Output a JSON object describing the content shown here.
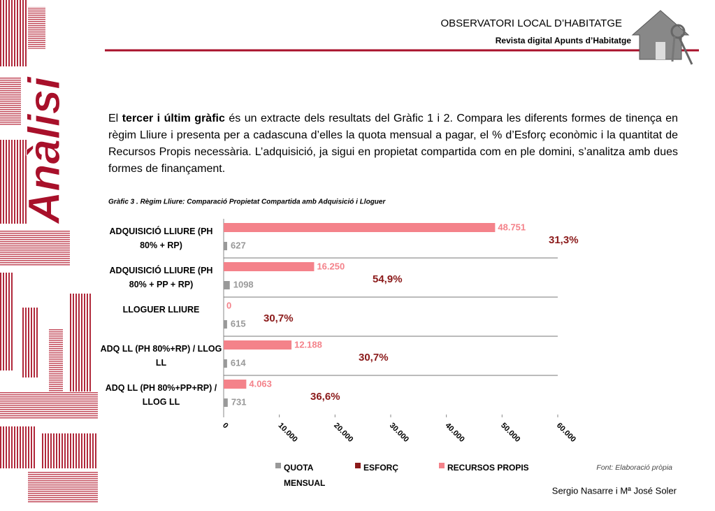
{
  "header": {
    "title": "OBSERVATORI LOCAL D’HABITATGE",
    "subtitle": "Revista digital Apunts d’Habitatge"
  },
  "side_label": "Anàlisi",
  "paragraph": {
    "before": "El ",
    "bold": "tercer i últim gràfic",
    "after": " és un extracte dels resultats del Gràfic 1 i 2. Compara les diferents formes de tinença en règim Lliure i presenta per a cadascuna d’elles la quota mensual a pagar, el % d’Esforç econòmic i la quantitat de Recursos Propis necessària. L’adquisició, ja sigui en propietat compartida com en ple domini, s’analitza amb dues formes de finançament."
  },
  "chart_data": {
    "type": "bar",
    "orientation": "horizontal",
    "title": "Gràfic 3 . Règim Lliure: Comparació Propietat Compartida amb Adquisició i Lloguer",
    "categories": [
      "ADQUISICIÓ LLIURE (PH 80% + RP)",
      "ADQUISICIÓ LLIURE (PH 80% + PP + RP)",
      "LLOGUER LLIURE",
      "ADQ LL (PH 80%+RP) / LLOG LL",
      "ADQ LL (PH 80%+PP+RP) / LLOG LL"
    ],
    "series": [
      {
        "name": "QUOTA MENSUAL",
        "color": "#999999",
        "values": [
          627,
          1098,
          615,
          614,
          731
        ]
      },
      {
        "name": "ESFORÇ",
        "color": "#8b1a1a",
        "values": [
          31.3,
          54.9,
          30.7,
          30.7,
          36.6
        ],
        "value_labels": [
          "31,3%",
          "54,9%",
          "30,7%",
          "30,7%",
          "36,6%"
        ]
      },
      {
        "name": "RECURSOS PROPIS",
        "color": "#f4828a",
        "values": [
          48751,
          16250,
          0,
          12188,
          4063
        ],
        "value_labels": [
          "48.751",
          "16.250",
          "0",
          "12.188",
          "4.063"
        ]
      }
    ],
    "xlim": [
      0,
      60000
    ],
    "xticks": [
      0,
      {
        "value": 10000,
        "label": "10.000"
      },
      {
        "value": 20000,
        "label": "20.000"
      },
      {
        "value": 30000,
        "label": "30.000"
      },
      {
        "value": 40000,
        "label": "40.000"
      },
      {
        "value": 50000,
        "label": "50.000"
      },
      {
        "value": 60000,
        "label": "60.000"
      }
    ],
    "legend": "bottom",
    "source": "Font: Elaboració pròpia"
  },
  "footer": {
    "author": "Sergio Nasarre i Mª José Soler"
  }
}
